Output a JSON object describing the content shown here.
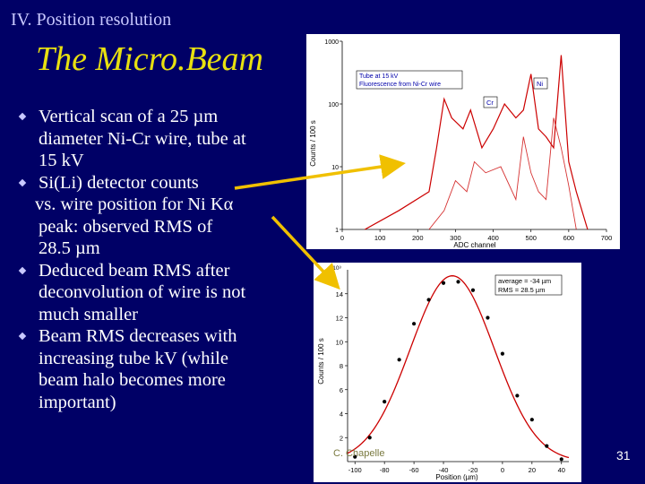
{
  "header": {
    "section": "IV. Position resolution",
    "title": "The Micro.Beam"
  },
  "bullets": [
    {
      "lines": [
        "Vertical scan of a 25 µm",
        "diameter Ni-Cr wire, tube at",
        "15 kV"
      ]
    },
    {
      "lines": [
        "Si(Li) detector counts",
        "vs. wire position for Ni Kα",
        "peak: observed RMS of",
        "28.5 µm"
      ]
    },
    {
      "lines": [
        "Deduced beam RMS after",
        "deconvolution of wire is not",
        "much smaller"
      ]
    },
    {
      "lines": [
        "Beam RMS decreases with",
        "increasing tube kV (while",
        "beam halo becomes more",
        "important)"
      ]
    }
  ],
  "spectrum_plot": {
    "ylabel": "Counts / 100 s",
    "xlabel": "ADC channel",
    "legend_line1": "Tube at 15 kV",
    "legend_line2": "Fluorescence from Ni-Cr wire",
    "label_ni": "Ni",
    "label_cr": "Cr",
    "x_ticks": [
      "0",
      "100",
      "200",
      "300",
      "400",
      "500",
      "600",
      "700"
    ],
    "y_ticks": [
      "1",
      "10",
      "100",
      "1000"
    ],
    "accent": "#cc0000"
  },
  "gauss_plot": {
    "ylabel": "Counts / 100 s",
    "xlabel": "Position (µm)",
    "exponent_label": "x10³",
    "legend_line1": "average = -34 µm",
    "legend_line2": "RMS = 28.5 µm",
    "x_ticks": [
      "-100",
      "-80",
      "-60",
      "-40",
      "-20",
      "0",
      "20",
      "40"
    ],
    "y_ticks": [
      "2",
      "4",
      "6",
      "8",
      "10",
      "12",
      "14"
    ],
    "curve_color": "#cc0000",
    "point_color": "#000000"
  },
  "chart_data": [
    {
      "type": "line",
      "xlabel": "ADC channel",
      "ylabel": "Counts / 100 s",
      "xlim": [
        0,
        700
      ],
      "ylim": [
        1,
        1000
      ],
      "yscale": "log",
      "series": [
        {
          "name": "Tube at 15 kV",
          "x": [
            60,
            150,
            230,
            250,
            270,
            290,
            320,
            340,
            370,
            400,
            430,
            460,
            480,
            500,
            520,
            540,
            560,
            580,
            600,
            620,
            650
          ],
          "y": [
            1,
            2,
            4,
            20,
            120,
            60,
            40,
            80,
            20,
            40,
            100,
            60,
            80,
            300,
            40,
            30,
            20,
            600,
            12,
            4,
            1
          ]
        },
        {
          "name": "Fluorescence from Ni-Cr wire",
          "x": [
            230,
            270,
            300,
            330,
            350,
            380,
            420,
            460,
            480,
            500,
            520,
            540,
            560,
            580,
            600,
            620
          ],
          "y": [
            1,
            2,
            6,
            4,
            12,
            8,
            10,
            3,
            30,
            8,
            4,
            3,
            60,
            20,
            5,
            1
          ]
        }
      ]
    },
    {
      "type": "scatter",
      "xlabel": "Position (µm)",
      "ylabel": "Counts / 100 s",
      "xlim": [
        -105,
        45
      ],
      "ylim": [
        0,
        16000
      ],
      "series": [
        {
          "name": "data",
          "x": [
            -100,
            -90,
            -80,
            -70,
            -60,
            -50,
            -40,
            -30,
            -20,
            -10,
            0,
            10,
            20,
            30,
            40
          ],
          "y": [
            400,
            2000,
            5000,
            8500,
            11500,
            13500,
            14900,
            15000,
            14300,
            12000,
            9000,
            5500,
            3500,
            1300,
            200
          ]
        },
        {
          "name": "gaussian fit",
          "mean": -34,
          "rms": 28.5,
          "amplitude": 15500
        }
      ]
    }
  ],
  "footer": {
    "faint_text": "C. Chapelle",
    "page_number": "31"
  }
}
